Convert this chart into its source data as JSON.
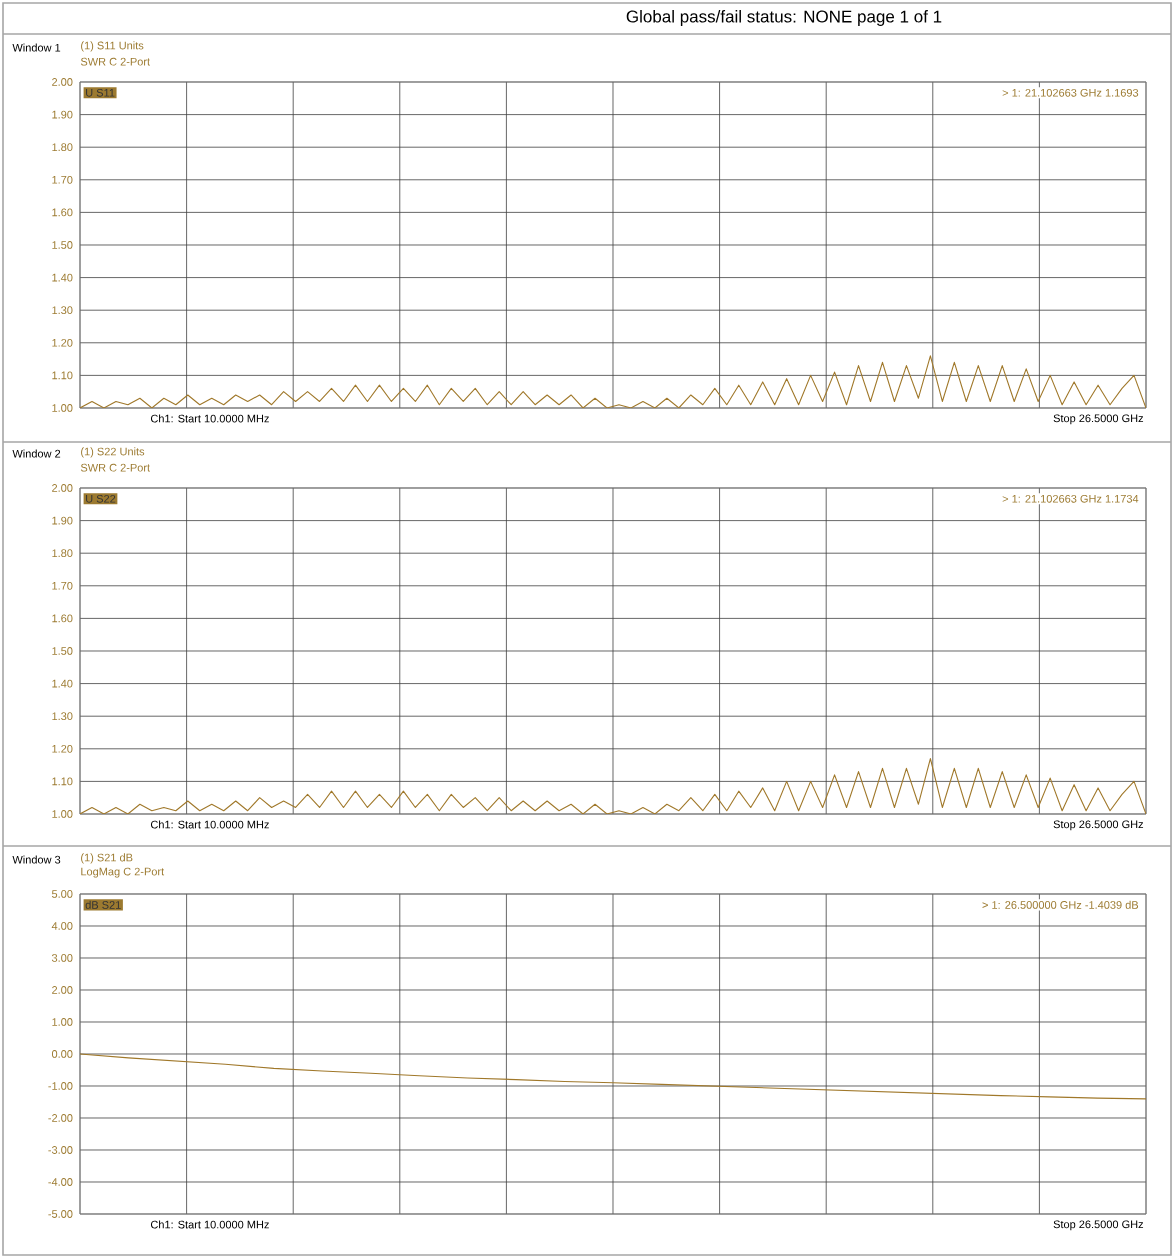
{
  "chart_data": [
    {
      "type": "line",
      "title": "(1) S11 Units",
      "subtitle": "SWR C  2-Port",
      "annotations": [
        "Window 1",
        "U S11",
        "Ch1: Start  10.0000 MHz",
        "Stop  26.5000 GHz",
        "> 1:  21.102663 GHz  1.1693",
        "Global pass/fail status: NONE    page  1 of  1"
      ],
      "categories": [
        null,
        null,
        null,
        null,
        null,
        null,
        null,
        null,
        null,
        null,
        null,
        null,
        null,
        null,
        null,
        null,
        null,
        null,
        null,
        null,
        null,
        null,
        null,
        null,
        null,
        null,
        null,
        null,
        null,
        null,
        null,
        null,
        null,
        null,
        null,
        null,
        null,
        null,
        null,
        null,
        null,
        null,
        null,
        null,
        null,
        null,
        null,
        null,
        null,
        null,
        null,
        null,
        null,
        null,
        null,
        null,
        null,
        null,
        null,
        null,
        null,
        null,
        null,
        null,
        null,
        null,
        null,
        null,
        null,
        null,
        null,
        null,
        null,
        null,
        null,
        null,
        null,
        null,
        null,
        null,
        null,
        null,
        null,
        null,
        null,
        null,
        null,
        null,
        null,
        null
      ],
      "ylim": [
        1.0,
        2.0
      ],
      "yticks": [
        {
          "value": 1.0,
          "label": "1.00"
        },
        {
          "value": 1.1,
          "label": "1.10"
        },
        {
          "value": 1.2,
          "label": "1.20"
        },
        {
          "value": 1.3,
          "label": "1.30"
        },
        {
          "value": 1.4,
          "label": "1.40"
        },
        {
          "value": 1.5,
          "label": "1.50"
        },
        {
          "value": 1.6,
          "label": "1.60"
        },
        {
          "value": 1.7,
          "label": "1.70"
        },
        {
          "value": 1.8,
          "label": "1.80"
        },
        {
          "value": 1.9,
          "label": "1.90"
        },
        {
          "value": 2.0,
          "label": "2.00"
        }
      ],
      "grid": true,
      "marker": "none",
      "line_style": "solid",
      "series": [
        {
          "color": "#a0782a",
          "values": [
            1.0,
            1.02,
            1.0,
            1.02,
            1.01,
            1.03,
            1.0,
            1.03,
            1.01,
            1.04,
            1.01,
            1.03,
            1.01,
            1.04,
            1.02,
            1.04,
            1.01,
            1.05,
            1.02,
            1.05,
            1.02,
            1.06,
            1.02,
            1.07,
            1.02,
            1.07,
            1.02,
            1.06,
            1.02,
            1.07,
            1.01,
            1.06,
            1.02,
            1.06,
            1.01,
            1.05,
            1.01,
            1.05,
            1.01,
            1.04,
            1.01,
            1.04,
            1.0,
            1.03,
            1.0,
            1.01,
            1.0,
            1.02,
            1.0,
            1.03,
            1.0,
            1.04,
            1.01,
            1.06,
            1.01,
            1.07,
            1.01,
            1.08,
            1.01,
            1.09,
            1.01,
            1.1,
            1.02,
            1.11,
            1.01,
            1.13,
            1.02,
            1.14,
            1.02,
            1.13,
            1.03,
            1.16,
            1.02,
            1.14,
            1.02,
            1.13,
            1.02,
            1.13,
            1.02,
            1.12,
            1.02,
            1.1,
            1.01,
            1.08,
            1.01,
            1.07,
            1.01,
            1.06,
            1.1,
            1.0
          ]
        }
      ]
    },
    {
      "type": "line",
      "title": "(1) S22 Units",
      "subtitle": "SWR C  2-Port",
      "annotations": [
        "Window 2",
        "U S22",
        "Ch1: Start  10.0000 MHz",
        "Stop  26.5000 GHz",
        "> 1:  21.102663 GHz  1.1734"
      ],
      "categories": [
        null,
        null,
        null,
        null,
        null,
        null,
        null,
        null,
        null,
        null,
        null,
        null,
        null,
        null,
        null,
        null,
        null,
        null,
        null,
        null,
        null,
        null,
        null,
        null,
        null,
        null,
        null,
        null,
        null,
        null,
        null,
        null,
        null,
        null,
        null,
        null,
        null,
        null,
        null,
        null,
        null,
        null,
        null,
        null,
        null,
        null,
        null,
        null,
        null,
        null,
        null,
        null,
        null,
        null,
        null,
        null,
        null,
        null,
        null,
        null,
        null,
        null,
        null,
        null,
        null,
        null,
        null,
        null,
        null,
        null,
        null,
        null,
        null,
        null,
        null,
        null,
        null,
        null,
        null,
        null,
        null,
        null,
        null,
        null,
        null,
        null,
        null,
        null,
        null,
        null
      ],
      "ylim": [
        1.0,
        2.0
      ],
      "yticks": [
        {
          "value": 1.0,
          "label": "1.00"
        },
        {
          "value": 1.1,
          "label": "1.10"
        },
        {
          "value": 1.2,
          "label": "1.20"
        },
        {
          "value": 1.3,
          "label": "1.30"
        },
        {
          "value": 1.4,
          "label": "1.40"
        },
        {
          "value": 1.5,
          "label": "1.50"
        },
        {
          "value": 1.6,
          "label": "1.60"
        },
        {
          "value": 1.7,
          "label": "1.70"
        },
        {
          "value": 1.8,
          "label": "1.80"
        },
        {
          "value": 1.9,
          "label": "1.90"
        },
        {
          "value": 2.0,
          "label": "2.00"
        }
      ],
      "grid": true,
      "marker": "none",
      "line_style": "solid",
      "series": [
        {
          "color": "#a0782a",
          "values": [
            1.0,
            1.02,
            1.0,
            1.02,
            1.0,
            1.03,
            1.01,
            1.02,
            1.01,
            1.04,
            1.01,
            1.03,
            1.01,
            1.04,
            1.01,
            1.05,
            1.02,
            1.04,
            1.02,
            1.06,
            1.02,
            1.07,
            1.02,
            1.07,
            1.02,
            1.06,
            1.02,
            1.07,
            1.02,
            1.06,
            1.01,
            1.06,
            1.02,
            1.05,
            1.01,
            1.05,
            1.01,
            1.04,
            1.01,
            1.04,
            1.01,
            1.03,
            1.0,
            1.03,
            1.0,
            1.01,
            1.0,
            1.02,
            1.0,
            1.03,
            1.01,
            1.05,
            1.01,
            1.06,
            1.01,
            1.07,
            1.02,
            1.08,
            1.01,
            1.1,
            1.01,
            1.1,
            1.02,
            1.12,
            1.02,
            1.13,
            1.02,
            1.14,
            1.02,
            1.14,
            1.03,
            1.17,
            1.02,
            1.14,
            1.02,
            1.14,
            1.02,
            1.13,
            1.02,
            1.12,
            1.02,
            1.11,
            1.01,
            1.09,
            1.01,
            1.08,
            1.01,
            1.06,
            1.1,
            1.0
          ]
        }
      ]
    },
    {
      "type": "line",
      "title": "(1) S21 dB",
      "subtitle": "LogMag C  2-Port",
      "annotations": [
        "Window 3",
        "dB S21",
        "Ch1: Start  10.0000 MHz",
        "Stop  26.5000 GHz",
        "> 1:  26.500000 GHz  -1.4039 dB"
      ],
      "categories": [
        null,
        null,
        null,
        null,
        null,
        null,
        null,
        null,
        null,
        null,
        null,
        null,
        null,
        null,
        null,
        null,
        null,
        null,
        null,
        null,
        null,
        null,
        null
      ],
      "ylim": [
        -5.0,
        5.0
      ],
      "yticks": [
        {
          "value": -5.0,
          "label": "-5.00"
        },
        {
          "value": -4.0,
          "label": "-4.00"
        },
        {
          "value": -3.0,
          "label": "-3.00"
        },
        {
          "value": -2.0,
          "label": "-2.00"
        },
        {
          "value": -1.0,
          "label": "-1.00"
        },
        {
          "value": 0.0,
          "label": "0.00"
        },
        {
          "value": 1.0,
          "label": "1.00"
        },
        {
          "value": 2.0,
          "label": "2.00"
        },
        {
          "value": 3.0,
          "label": "3.00"
        },
        {
          "value": 4.0,
          "label": "4.00"
        },
        {
          "value": 5.0,
          "label": "5.00"
        }
      ],
      "grid": true,
      "marker": "none",
      "line_style": "solid",
      "series": [
        {
          "color": "#a0782a",
          "values": [
            0.0,
            -0.12,
            -0.22,
            -0.32,
            -0.45,
            -0.53,
            -0.6,
            -0.68,
            -0.75,
            -0.8,
            -0.86,
            -0.9,
            -0.95,
            -1.0,
            -1.05,
            -1.1,
            -1.15,
            -1.2,
            -1.25,
            -1.3,
            -1.34,
            -1.38,
            -1.4039
          ]
        }
      ]
    }
  ]
}
